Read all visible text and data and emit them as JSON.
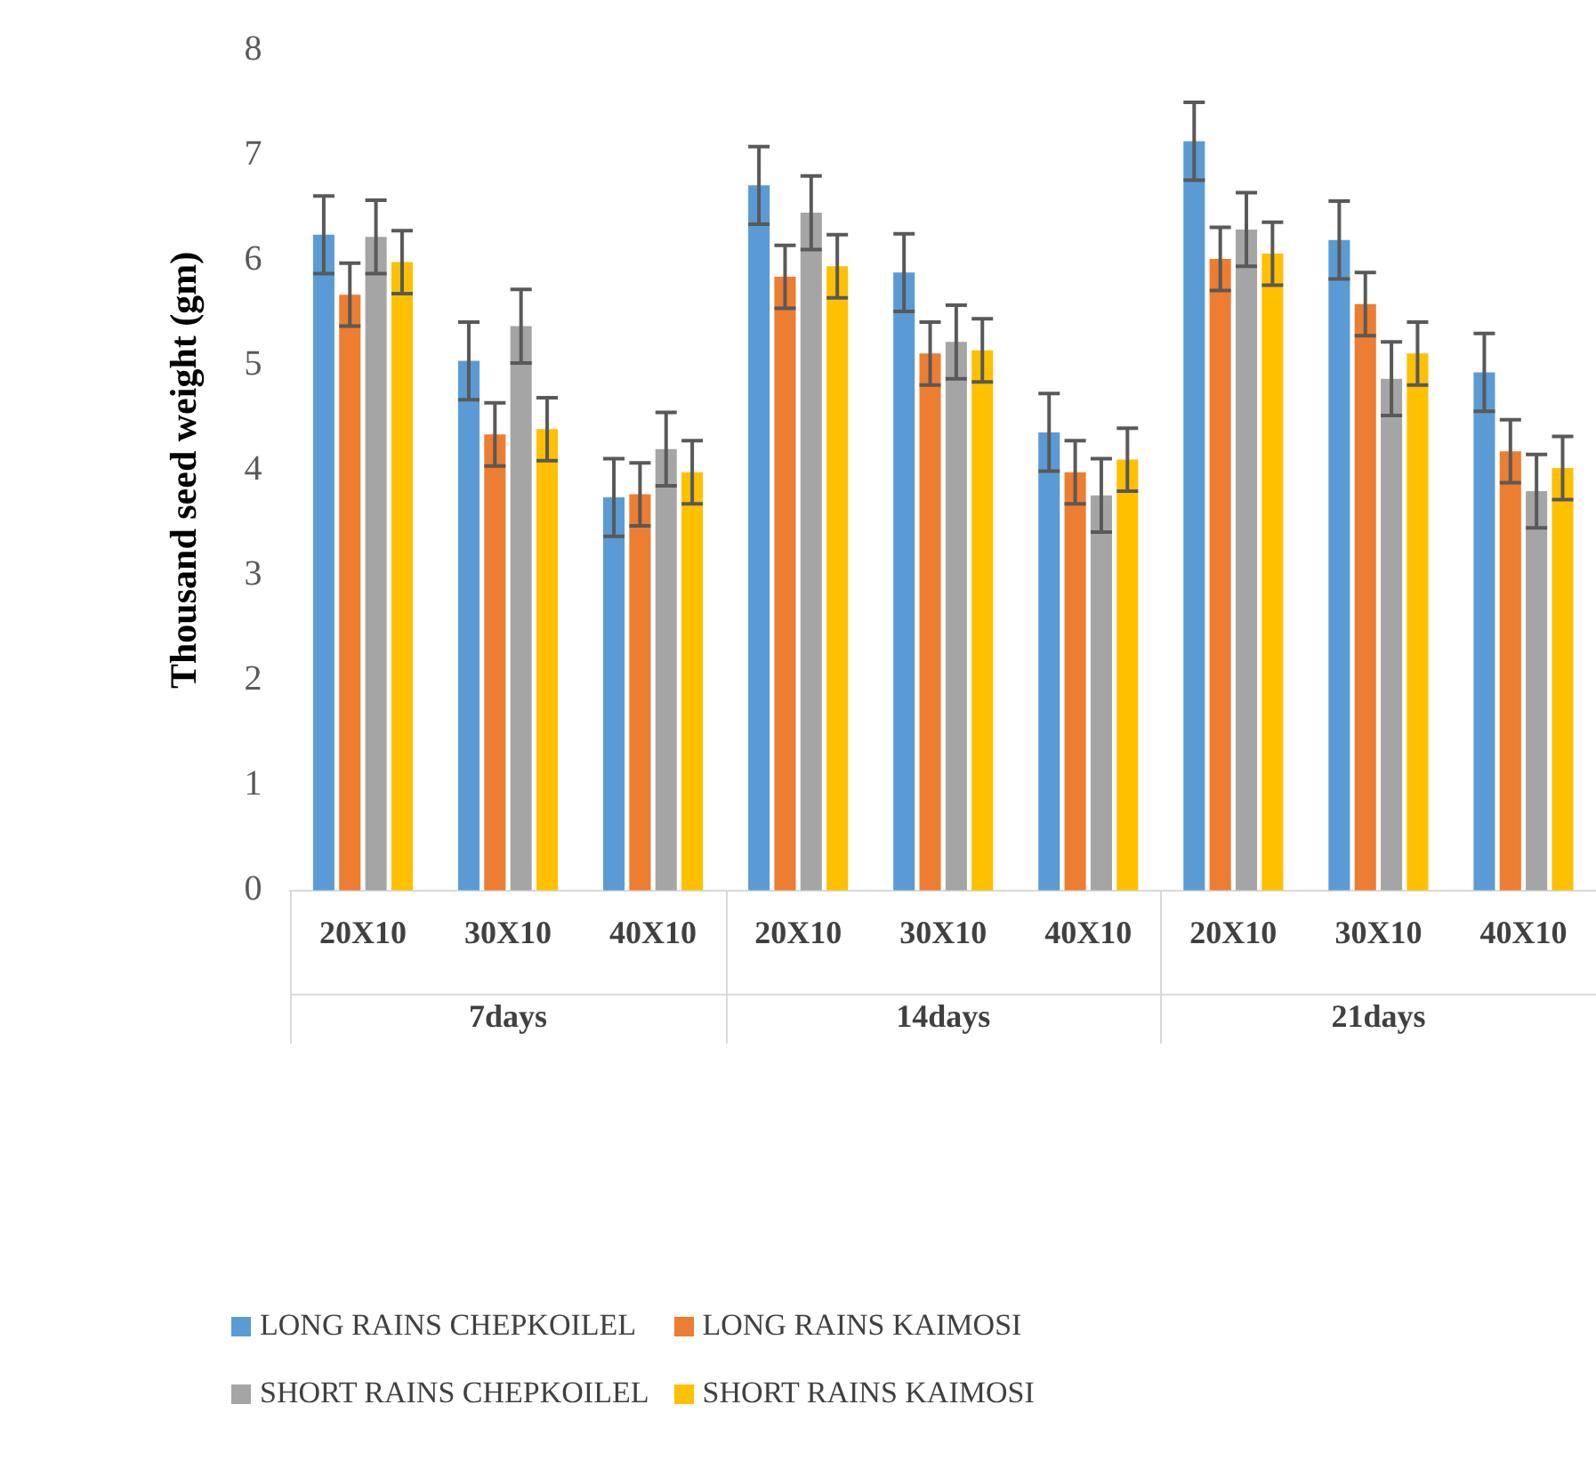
{
  "chart_data": {
    "type": "bar",
    "ylabel": "Thousand seed weight (gm)",
    "categories": [
      "20X10",
      "30X10",
      "40X10",
      "20X10",
      "30X10",
      "40X10",
      "20X10",
      "30X10",
      "40X10"
    ],
    "annotations": [
      "7days",
      "14days",
      "21days"
    ],
    "series": [
      {
        "name": "LONG RAINS CHEPKOILEL",
        "color": "#5b9bd5",
        "values": [
          6.24,
          5.04,
          3.74,
          6.71,
          5.88,
          4.36,
          7.13,
          6.19,
          4.93
        ],
        "errors": [
          0.37,
          0.37,
          0.37,
          0.37,
          0.37,
          0.37,
          0.37,
          0.37,
          0.37
        ]
      },
      {
        "name": "LONG RAINS KAIMOSI",
        "color": "#ed7d31",
        "values": [
          5.67,
          4.34,
          3.77,
          5.84,
          5.11,
          3.98,
          6.01,
          5.58,
          4.18
        ],
        "errors": [
          0.3,
          0.3,
          0.3,
          0.3,
          0.3,
          0.3,
          0.3,
          0.3,
          0.3
        ]
      },
      {
        "name": "SHORT RAINS CHEPKOILEL",
        "color": "#a5a5a5",
        "values": [
          6.22,
          5.37,
          4.2,
          6.45,
          5.22,
          3.76,
          6.29,
          4.87,
          3.8
        ],
        "errors": [
          0.35,
          0.35,
          0.35,
          0.35,
          0.35,
          0.35,
          0.35,
          0.35,
          0.35
        ]
      },
      {
        "name": "SHORT RAINS KAIMOSI",
        "color": "#ffc000",
        "values": [
          5.98,
          4.39,
          3.98,
          5.94,
          5.14,
          4.1,
          6.06,
          5.11,
          4.02
        ],
        "errors": [
          0.3,
          0.3,
          0.3,
          0.3,
          0.3,
          0.3,
          0.3,
          0.3,
          0.3
        ]
      }
    ],
    "ylim": [
      0,
      8
    ],
    "yticks": [
      0,
      1,
      2,
      3,
      4,
      5,
      6,
      7,
      8
    ],
    "grid": false,
    "legend": "bottom"
  }
}
